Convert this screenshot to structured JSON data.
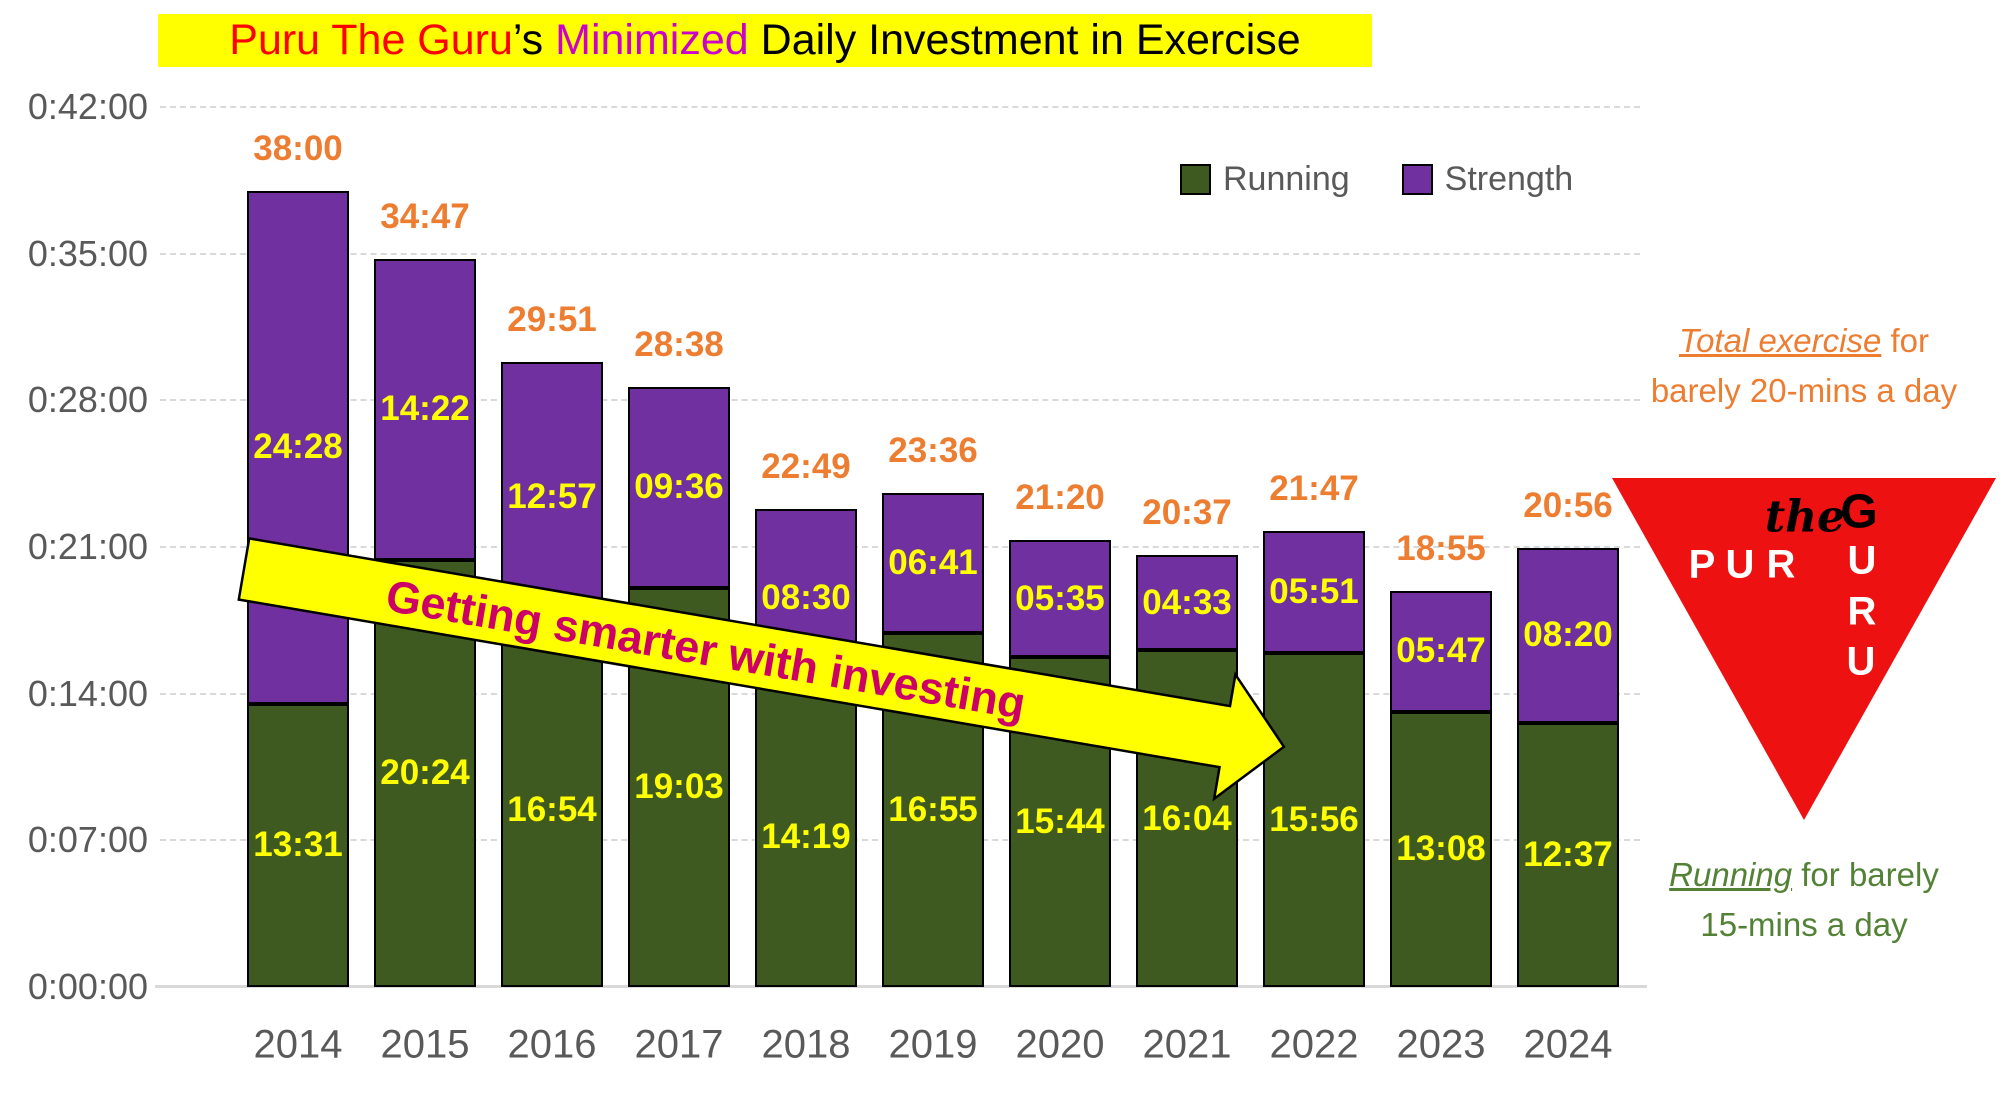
{
  "title": {
    "part_red": "Puru The Guru",
    "part_black1": "’s ",
    "part_magenta": "Minimized",
    "part_black2": " Daily Investment in Exercise",
    "highlight_bg": "#FFFF00"
  },
  "legend": [
    {
      "label": "Running",
      "color": "#3E5A21"
    },
    {
      "label": "Strength",
      "color": "#7030A0"
    }
  ],
  "chart_data": {
    "type": "bar",
    "stacked": true,
    "title": "Puru The Guru’s Minimized Daily Investment in Exercise",
    "categories": [
      "2014",
      "2015",
      "2016",
      "2017",
      "2018",
      "2019",
      "2020",
      "2021",
      "2022",
      "2023",
      "2024"
    ],
    "series": [
      {
        "name": "Running",
        "color": "#3E5A21",
        "values": [
          "13:31",
          "20:24",
          "16:54",
          "19:03",
          "14:19",
          "16:55",
          "15:44",
          "16:04",
          "15:56",
          "13:08",
          "12:37"
        ]
      },
      {
        "name": "Strength",
        "color": "#7030A0",
        "values": [
          "24:28",
          "14:22",
          "12:57",
          "09:36",
          "08:30",
          "06:41",
          "05:35",
          "04:33",
          "05:51",
          "05:47",
          "08:20"
        ]
      }
    ],
    "totals": [
      "38:00",
      "34:47",
      "29:51",
      "28:38",
      "22:49",
      "23:36",
      "21:20",
      "20:37",
      "21:47",
      "18:55",
      "20:56"
    ],
    "y_ticks": [
      "0:42:00",
      "0:35:00",
      "0:28:00",
      "0:21:00",
      "0:14:00",
      "0:07:00",
      "0:00:00"
    ],
    "y_axis_format": "h:mm:ss",
    "ylim_minutes": [
      0,
      42
    ],
    "gridlines": "horizontal-dashed",
    "legend_position": "top-right"
  },
  "annotations": {
    "arrow_text": "Getting smarter with investing",
    "arrow_text_color": "#CC0066",
    "arrow_fill": "#FFFF00",
    "total_note": {
      "em": "Total exercise",
      "rest": " for",
      "line2": "barely 20-mins a day"
    },
    "running_note": {
      "em": "Running",
      "rest": " for barely",
      "line2": "15-mins a day"
    },
    "logo": {
      "script_word": "the",
      "triangle_color": "#EE1111",
      "vertical_word_letters": {
        "l1": "G",
        "l2": "U",
        "l3": "R",
        "l4": "U"
      },
      "horizontal_word_letters": {
        "l1": "P",
        "l2": "U",
        "l3": "R"
      }
    }
  },
  "colors": {
    "running_green": "#3E5A21",
    "strength_purple": "#7030A0",
    "total_label_orange": "#ED7D31",
    "value_label_yellow": "#FFFF00",
    "title_red": "#FF0000",
    "title_magenta": "#CC00CC",
    "note_green": "#538135",
    "axis_text_gray": "#595959",
    "gridline_gray": "#D9D9D9"
  }
}
